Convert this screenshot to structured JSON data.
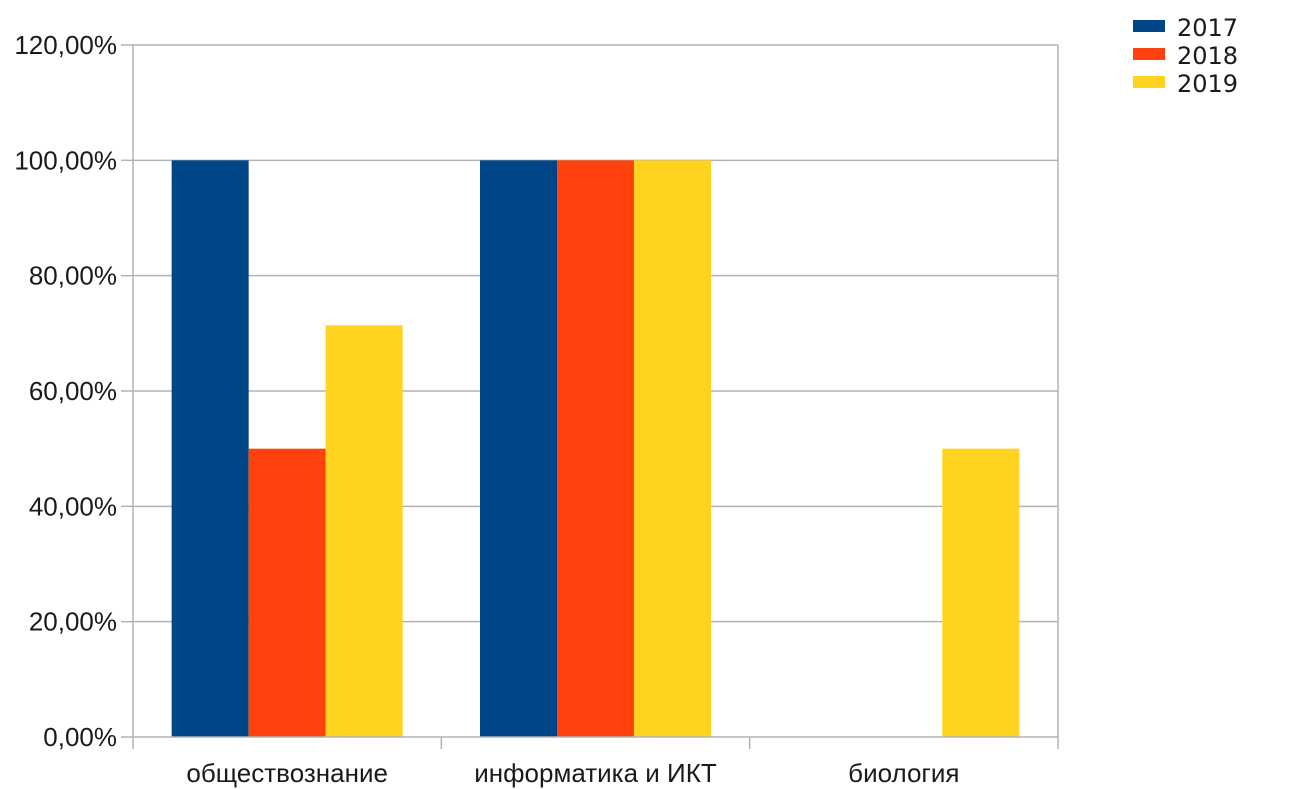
{
  "chart_data": {
    "type": "bar",
    "title": "",
    "xlabel": "",
    "ylabel": "",
    "categories": [
      "обществознание",
      "информатика и ИКТ",
      "биология"
    ],
    "series": [
      {
        "name": "2017",
        "color": "#004586",
        "values": [
          1.0,
          1.0,
          0
        ]
      },
      {
        "name": "2018",
        "color": "#ff420e",
        "values": [
          0.5,
          1.0,
          0
        ]
      },
      {
        "name": "2019",
        "color": "#ffd320",
        "values": [
          0.714,
          1.0,
          0.5
        ]
      }
    ],
    "ylim": [
      0,
      1.2
    ],
    "yticks": [
      0,
      0.2,
      0.4,
      0.6,
      0.8,
      1.0,
      1.2
    ],
    "ytick_labels": [
      "0,00%",
      "20,00%",
      "40,00%",
      "60,00%",
      "80,00%",
      "100,00%",
      "120,00%"
    ],
    "grid": true,
    "legend_position": "top-right",
    "gridline_color": "#b3b3b3",
    "axis_color": "#b3b3b3"
  }
}
